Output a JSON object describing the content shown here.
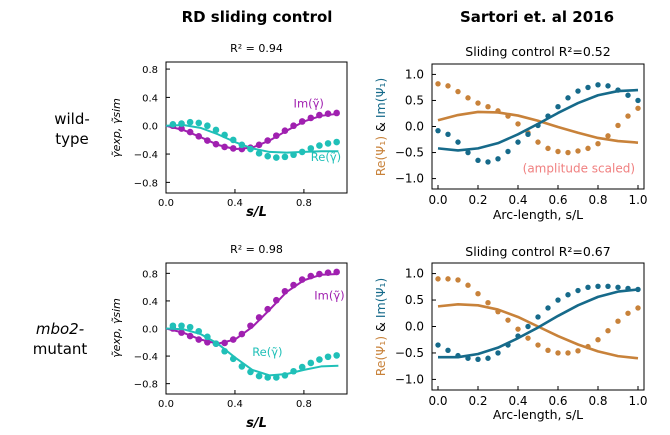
{
  "headers": {
    "left": "RD sliding control",
    "right": "Sartori et. al 2016"
  },
  "rows": {
    "top_line1": "wild-",
    "top_line2": "type",
    "bottom_line1": "mbo2-",
    "bottom_line2": "mutant"
  },
  "colors": {
    "im_left": "#a020b0",
    "re_left": "#20c0b8",
    "re_right": "#c8823a",
    "im_right": "#166a8a",
    "scaled_note": "#f08080"
  },
  "chart_data": [
    {
      "id": "rd-wild-type",
      "type": "scatter",
      "title": "R² = 0.94",
      "xlabel": "s/L",
      "ylabel": "γ̃exp, γ̃sim",
      "xlim": [
        0,
        1.05
      ],
      "ylim": [
        -0.95,
        0.9
      ],
      "xticks": [
        0.0,
        0.4,
        0.8
      ],
      "xtick_labels": [
        "0.0",
        "0.4",
        "0.8"
      ],
      "yticks": [
        -0.8,
        -0.4,
        0.0,
        0.4,
        0.8
      ],
      "ytick_labels": [
        "−0.8",
        "−0.4",
        "0.0",
        "0.4",
        "0.8"
      ],
      "grid": false,
      "annotations": [
        {
          "text": "Im(γ̃)",
          "x": 0.74,
          "y": 0.26,
          "series": "im"
        },
        {
          "text": "Re(γ̃)",
          "x": 0.84,
          "y": -0.5,
          "series": "re"
        }
      ],
      "series": [
        {
          "key": "im",
          "kind": "points",
          "x": [
            0.04,
            0.09,
            0.14,
            0.19,
            0.24,
            0.29,
            0.34,
            0.39,
            0.44,
            0.49,
            0.54,
            0.59,
            0.64,
            0.69,
            0.74,
            0.79,
            0.84,
            0.89,
            0.94,
            0.99
          ],
          "y": [
            0.0,
            -0.04,
            -0.09,
            -0.15,
            -0.21,
            -0.26,
            -0.3,
            -0.32,
            -0.33,
            -0.31,
            -0.27,
            -0.21,
            -0.14,
            -0.07,
            0.0,
            0.06,
            0.11,
            0.15,
            0.17,
            0.18
          ]
        },
        {
          "key": "im",
          "kind": "line",
          "x": [
            0.0,
            0.1,
            0.2,
            0.3,
            0.4,
            0.5,
            0.6,
            0.7,
            0.8,
            0.9,
            1.0
          ],
          "y": [
            0.0,
            -0.06,
            -0.16,
            -0.27,
            -0.33,
            -0.31,
            -0.21,
            -0.07,
            0.06,
            0.14,
            0.17
          ]
        },
        {
          "key": "re",
          "kind": "points",
          "x": [
            0.04,
            0.09,
            0.14,
            0.19,
            0.24,
            0.29,
            0.34,
            0.39,
            0.44,
            0.49,
            0.54,
            0.59,
            0.64,
            0.69,
            0.74,
            0.79,
            0.84,
            0.89,
            0.94,
            0.99
          ],
          "y": [
            0.02,
            0.03,
            0.05,
            0.04,
            0.0,
            -0.06,
            -0.13,
            -0.2,
            -0.27,
            -0.33,
            -0.39,
            -0.43,
            -0.45,
            -0.44,
            -0.41,
            -0.37,
            -0.32,
            -0.28,
            -0.25,
            -0.23
          ]
        },
        {
          "key": "re",
          "kind": "line",
          "x": [
            0.0,
            0.1,
            0.2,
            0.3,
            0.4,
            0.5,
            0.6,
            0.7,
            0.8,
            0.9,
            1.0
          ],
          "y": [
            0.0,
            0.01,
            -0.03,
            -0.12,
            -0.23,
            -0.32,
            -0.37,
            -0.38,
            -0.37,
            -0.36,
            -0.36
          ]
        }
      ]
    },
    {
      "id": "rd-mutant",
      "type": "scatter",
      "title": "R² = 0.98",
      "xlabel": "s/L",
      "ylabel": "γ̃exp, γ̃sim",
      "xlim": [
        0,
        1.05
      ],
      "ylim": [
        -0.95,
        0.95
      ],
      "xticks": [
        0.0,
        0.4,
        0.8
      ],
      "xtick_labels": [
        "0.0",
        "0.4",
        "0.8"
      ],
      "yticks": [
        -0.8,
        -0.4,
        0.0,
        0.4,
        0.8
      ],
      "ytick_labels": [
        "−0.8",
        "−0.4",
        "0.0",
        "0.4",
        "0.8"
      ],
      "grid": false,
      "annotations": [
        {
          "text": "Im(γ̃)",
          "x": 0.86,
          "y": 0.42,
          "series": "im"
        },
        {
          "text": "Re(γ̃)",
          "x": 0.5,
          "y": -0.4,
          "series": "re"
        }
      ],
      "series": [
        {
          "key": "im",
          "kind": "points",
          "x": [
            0.04,
            0.09,
            0.14,
            0.19,
            0.24,
            0.29,
            0.34,
            0.39,
            0.44,
            0.49,
            0.54,
            0.59,
            0.64,
            0.69,
            0.74,
            0.79,
            0.84,
            0.89,
            0.94,
            0.99
          ],
          "y": [
            0.0,
            -0.06,
            -0.11,
            -0.16,
            -0.2,
            -0.22,
            -0.21,
            -0.16,
            -0.08,
            0.04,
            0.16,
            0.28,
            0.41,
            0.54,
            0.63,
            0.71,
            0.76,
            0.79,
            0.81,
            0.82
          ]
        },
        {
          "key": "im",
          "kind": "line",
          "x": [
            0.0,
            0.1,
            0.2,
            0.3,
            0.4,
            0.5,
            0.6,
            0.7,
            0.8,
            0.9,
            1.0
          ],
          "y": [
            0.0,
            -0.06,
            -0.16,
            -0.22,
            -0.16,
            0.02,
            0.27,
            0.53,
            0.7,
            0.78,
            0.79
          ]
        },
        {
          "key": "re",
          "kind": "points",
          "x": [
            0.04,
            0.09,
            0.14,
            0.19,
            0.24,
            0.29,
            0.34,
            0.39,
            0.44,
            0.49,
            0.54,
            0.59,
            0.64,
            0.69,
            0.74,
            0.79,
            0.84,
            0.89,
            0.94,
            0.99
          ],
          "y": [
            0.04,
            0.04,
            0.02,
            -0.04,
            -0.12,
            -0.22,
            -0.33,
            -0.44,
            -0.55,
            -0.63,
            -0.69,
            -0.71,
            -0.71,
            -0.68,
            -0.62,
            -0.56,
            -0.5,
            -0.45,
            -0.41,
            -0.39
          ]
        },
        {
          "key": "re",
          "kind": "line",
          "x": [
            0.0,
            0.1,
            0.2,
            0.3,
            0.4,
            0.5,
            0.6,
            0.7,
            0.8,
            0.9,
            1.0
          ],
          "y": [
            0.0,
            -0.01,
            -0.08,
            -0.22,
            -0.42,
            -0.6,
            -0.68,
            -0.66,
            -0.6,
            -0.55,
            -0.54
          ]
        }
      ]
    },
    {
      "id": "sartori-wild-type",
      "type": "scatter",
      "title": "Sliding control  R²=0.52",
      "xlabel": "Arc-length, s/L",
      "ylabel_re": "Re(Ψ₁)",
      "ylabel_sep": " & ",
      "ylabel_im": "Im(Ψ₁)",
      "xlim": [
        -0.03,
        1.03
      ],
      "ylim": [
        -1.2,
        1.2
      ],
      "xticks": [
        0.0,
        0.2,
        0.4,
        0.6,
        0.8,
        1.0
      ],
      "xtick_labels": [
        "0.0",
        "0.2",
        "0.4",
        "0.6",
        "0.8",
        "1.0"
      ],
      "yticks": [
        -1.0,
        -0.5,
        0.0,
        0.5,
        1.0
      ],
      "ytick_labels": [
        "−1.0",
        "−0.5",
        "0.0",
        "0.5",
        "1.0"
      ],
      "grid": false,
      "annotations": [
        {
          "text": "(amplitude scaled)",
          "x": 0.985,
          "y": -0.88,
          "series": "note"
        }
      ],
      "series": [
        {
          "key": "re",
          "kind": "points",
          "x": [
            0.0,
            0.05,
            0.1,
            0.15,
            0.2,
            0.25,
            0.3,
            0.35,
            0.4,
            0.45,
            0.5,
            0.55,
            0.6,
            0.65,
            0.7,
            0.75,
            0.8,
            0.85,
            0.9,
            0.95,
            1.0
          ],
          "y": [
            0.82,
            0.78,
            0.67,
            0.55,
            0.45,
            0.38,
            0.3,
            0.2,
            0.05,
            -0.12,
            -0.3,
            -0.42,
            -0.48,
            -0.5,
            -0.47,
            -0.42,
            -0.33,
            -0.18,
            0.02,
            0.2,
            0.35
          ]
        },
        {
          "key": "re",
          "kind": "line",
          "x": [
            0.0,
            0.1,
            0.2,
            0.3,
            0.4,
            0.5,
            0.6,
            0.7,
            0.8,
            0.9,
            1.0
          ],
          "y": [
            0.12,
            0.22,
            0.28,
            0.27,
            0.21,
            0.11,
            -0.01,
            -0.12,
            -0.22,
            -0.28,
            -0.31
          ]
        },
        {
          "key": "im",
          "kind": "points",
          "x": [
            0.0,
            0.05,
            0.1,
            0.15,
            0.2,
            0.25,
            0.3,
            0.35,
            0.4,
            0.45,
            0.5,
            0.55,
            0.6,
            0.65,
            0.7,
            0.75,
            0.8,
            0.85,
            0.9,
            0.95,
            1.0
          ],
          "y": [
            -0.08,
            -0.15,
            -0.3,
            -0.5,
            -0.65,
            -0.68,
            -0.62,
            -0.48,
            -0.3,
            -0.15,
            0.02,
            0.2,
            0.38,
            0.55,
            0.68,
            0.75,
            0.8,
            0.78,
            0.7,
            0.6,
            0.5
          ]
        },
        {
          "key": "im",
          "kind": "line",
          "x": [
            0.0,
            0.1,
            0.2,
            0.3,
            0.4,
            0.5,
            0.6,
            0.7,
            0.8,
            0.9,
            1.0
          ],
          "y": [
            -0.42,
            -0.46,
            -0.42,
            -0.32,
            -0.15,
            0.05,
            0.26,
            0.45,
            0.6,
            0.68,
            0.7
          ]
        }
      ]
    },
    {
      "id": "sartori-mutant",
      "type": "scatter",
      "title": "Sliding control  R²=0.67",
      "xlabel": "Arc-length, s/L",
      "ylabel_re": "Re(Ψ₁)",
      "ylabel_sep": " & ",
      "ylabel_im": "Im(Ψ₁)",
      "xlim": [
        -0.03,
        1.03
      ],
      "ylim": [
        -1.2,
        1.2
      ],
      "xticks": [
        0.0,
        0.2,
        0.4,
        0.6,
        0.8,
        1.0
      ],
      "xtick_labels": [
        "0.0",
        "0.2",
        "0.4",
        "0.6",
        "0.8",
        "1.0"
      ],
      "yticks": [
        -1.0,
        -0.5,
        0.0,
        0.5,
        1.0
      ],
      "ytick_labels": [
        "−1.0",
        "−0.5",
        "0.0",
        "0.5",
        "1.0"
      ],
      "grid": false,
      "annotations": [],
      "series": [
        {
          "key": "re",
          "kind": "points",
          "x": [
            0.0,
            0.05,
            0.1,
            0.15,
            0.2,
            0.25,
            0.3,
            0.35,
            0.4,
            0.45,
            0.5,
            0.55,
            0.6,
            0.65,
            0.7,
            0.75,
            0.8,
            0.85,
            0.9,
            0.95,
            1.0
          ],
          "y": [
            0.9,
            0.9,
            0.88,
            0.78,
            0.62,
            0.45,
            0.28,
            0.12,
            -0.05,
            -0.22,
            -0.35,
            -0.45,
            -0.5,
            -0.5,
            -0.46,
            -0.38,
            -0.25,
            -0.08,
            0.1,
            0.25,
            0.35
          ]
        },
        {
          "key": "re",
          "kind": "line",
          "x": [
            0.0,
            0.1,
            0.2,
            0.3,
            0.4,
            0.5,
            0.6,
            0.7,
            0.8,
            0.9,
            1.0
          ],
          "y": [
            0.38,
            0.42,
            0.4,
            0.32,
            0.18,
            0.0,
            -0.18,
            -0.34,
            -0.47,
            -0.56,
            -0.6
          ]
        },
        {
          "key": "im",
          "kind": "points",
          "x": [
            0.0,
            0.05,
            0.1,
            0.15,
            0.2,
            0.25,
            0.3,
            0.35,
            0.4,
            0.45,
            0.5,
            0.55,
            0.6,
            0.65,
            0.7,
            0.75,
            0.8,
            0.85,
            0.9,
            0.95,
            1.0
          ],
          "y": [
            -0.35,
            -0.45,
            -0.55,
            -0.6,
            -0.62,
            -0.6,
            -0.5,
            -0.35,
            -0.18,
            0.0,
            0.18,
            0.35,
            0.5,
            0.6,
            0.68,
            0.74,
            0.76,
            0.76,
            0.74,
            0.72,
            0.7
          ]
        },
        {
          "key": "im",
          "kind": "line",
          "x": [
            0.0,
            0.1,
            0.2,
            0.3,
            0.4,
            0.5,
            0.6,
            0.7,
            0.8,
            0.9,
            1.0
          ],
          "y": [
            -0.58,
            -0.58,
            -0.52,
            -0.4,
            -0.22,
            -0.02,
            0.2,
            0.4,
            0.56,
            0.66,
            0.7
          ]
        }
      ]
    }
  ]
}
